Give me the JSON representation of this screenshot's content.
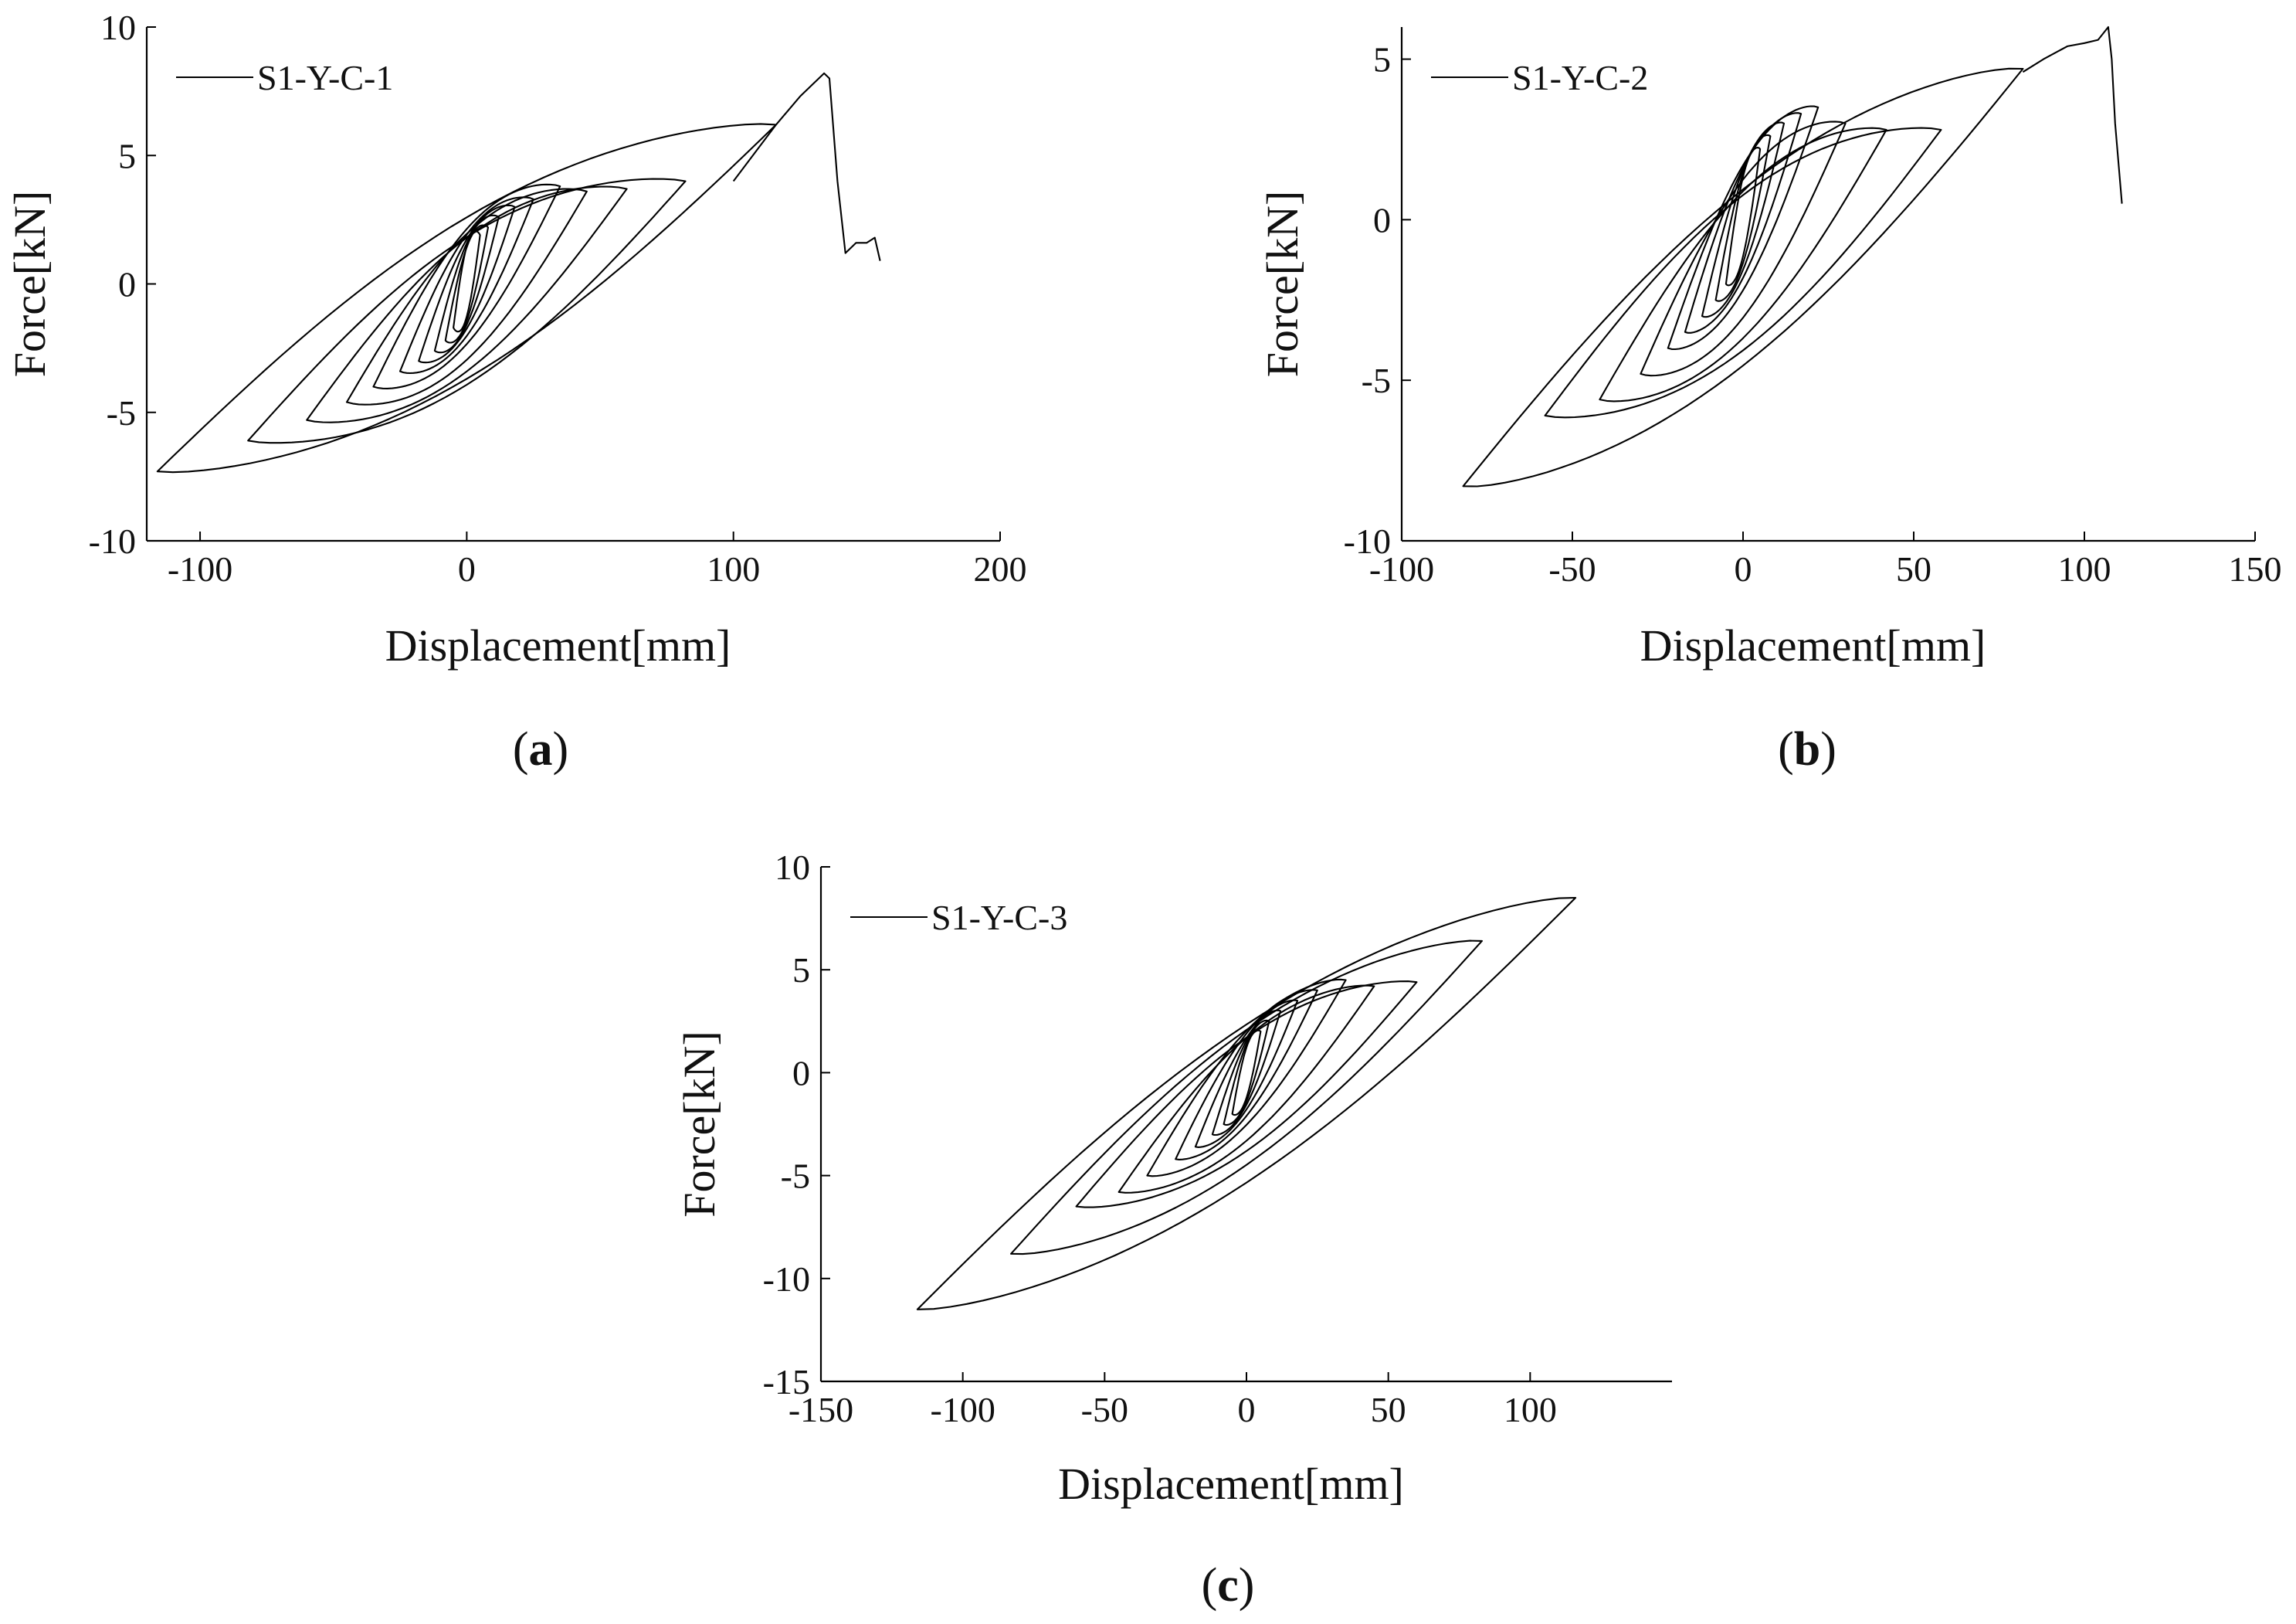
{
  "figure": {
    "panels_label_open": "(",
    "panels_label_close": ")"
  },
  "chart_data": [
    {
      "id": "a",
      "type": "line",
      "panel_label": "a",
      "title": "",
      "xlabel": "Displacement[mm]",
      "ylabel": "Force[kN]",
      "xlim": [
        -120,
        200
      ],
      "ylim": [
        -10,
        10
      ],
      "xticks": [
        -100,
        0,
        100,
        200
      ],
      "yticks": [
        -10,
        -5,
        0,
        5,
        10
      ],
      "grid": false,
      "legend_position": "top-left",
      "series": [
        {
          "name": "S1-Y-C-1",
          "loops": [
            {
              "amp": 5,
              "fp": 1.9,
              "fn": -1.7,
              "c": 1.2
            },
            {
              "amp": 8,
              "fp": 2.2,
              "fn": -2.2,
              "c": 1.2
            },
            {
              "amp": 12,
              "fp": 2.6,
              "fn": -2.6,
              "c": 1.3
            },
            {
              "amp": 18,
              "fp": 3.0,
              "fn": -3.0,
              "c": 1.4
            },
            {
              "amp": 25,
              "fp": 3.3,
              "fn": -3.4,
              "c": 1.6
            },
            {
              "amp": 35,
              "fp": 3.8,
              "fn": -4.0,
              "c": 1.8
            },
            {
              "amp": 45,
              "fp": 3.6,
              "fn": -4.6,
              "c": 2.0
            },
            {
              "amp": 60,
              "fp": 3.7,
              "fn": -5.3,
              "c": 2.1
            },
            {
              "amp": 82,
              "fp": 4.0,
              "fn": -6.1,
              "c": 2.3
            },
            {
              "amp": 116,
              "fp": 6.2,
              "fn": -7.3,
              "c": 2.3
            }
          ],
          "envelope_tail": [
            [
              100,
              4.0
            ],
            [
              116,
              6.2
            ],
            [
              125,
              7.3
            ],
            [
              134,
              8.2
            ],
            [
              136,
              8.0
            ],
            [
              139,
              4.0
            ],
            [
              142,
              1.2
            ],
            [
              146,
              1.6
            ],
            [
              150,
              1.6
            ],
            [
              153,
              1.8
            ],
            [
              155,
              0.9
            ]
          ]
        }
      ]
    },
    {
      "id": "b",
      "type": "line",
      "panel_label": "b",
      "title": "",
      "xlabel": "Displacement[mm]",
      "ylabel": "Force[kN]",
      "xlim": [
        -100,
        150
      ],
      "ylim": [
        -10,
        6
      ],
      "xticks": [
        -100,
        -50,
        0,
        50,
        100,
        150
      ],
      "yticks": [
        -10,
        -5,
        0,
        5
      ],
      "grid": false,
      "legend_position": "top-left",
      "series": [
        {
          "name": "S1-Y-C-2",
          "loops": [
            {
              "amp": 5,
              "fp": 2.2,
              "fn": -2.0,
              "c": 1.0
            },
            {
              "amp": 8,
              "fp": 2.6,
              "fn": -2.5,
              "c": 1.1
            },
            {
              "amp": 12,
              "fp": 3.0,
              "fn": -3.0,
              "c": 1.2
            },
            {
              "amp": 17,
              "fp": 3.3,
              "fn": -3.5,
              "c": 1.3
            },
            {
              "amp": 22,
              "fp": 3.5,
              "fn": -4.0,
              "c": 1.5
            },
            {
              "amp": 30,
              "fp": 3.0,
              "fn": -4.8,
              "c": 1.7
            },
            {
              "amp": 42,
              "fp": 2.8,
              "fn": -5.6,
              "c": 1.8
            },
            {
              "amp": 58,
              "fp": 2.8,
              "fn": -6.1,
              "c": 1.9
            },
            {
              "amp": 82,
              "fp": 4.7,
              "fn": -8.3,
              "c": 1.9
            }
          ],
          "envelope_tail": [
            [
              82,
              4.6
            ],
            [
              88,
              5.0
            ],
            [
              95,
              5.4
            ],
            [
              100,
              5.5
            ],
            [
              104,
              5.6
            ],
            [
              107,
              6.0
            ],
            [
              108,
              5.0
            ],
            [
              109,
              3.0
            ],
            [
              111,
              0.5
            ]
          ]
        }
      ]
    },
    {
      "id": "c",
      "type": "line",
      "panel_label": "c",
      "title": "",
      "xlabel": "Displacement[mm]",
      "ylabel": "Force[kN]",
      "xlim": [
        -150,
        150
      ],
      "ylim": [
        -15,
        10
      ],
      "xticks": [
        -150,
        -100,
        -50,
        0,
        50,
        100
      ],
      "yticks": [
        -15,
        -10,
        -5,
        0,
        5,
        10
      ],
      "grid": false,
      "legend_position": "top-left",
      "series": [
        {
          "name": "S1-Y-C-3",
          "loops": [
            {
              "amp": 5,
              "fp": 2.0,
              "fn": -2.0,
              "c": 1.0
            },
            {
              "amp": 8,
              "fp": 2.5,
              "fn": -2.5,
              "c": 1.1
            },
            {
              "amp": 12,
              "fp": 3.0,
              "fn": -3.0,
              "c": 1.2
            },
            {
              "amp": 18,
              "fp": 3.5,
              "fn": -3.6,
              "c": 1.3
            },
            {
              "amp": 25,
              "fp": 4.0,
              "fn": -4.2,
              "c": 1.5
            },
            {
              "amp": 35,
              "fp": 4.5,
              "fn": -5.0,
              "c": 1.7
            },
            {
              "amp": 45,
              "fp": 4.2,
              "fn": -5.8,
              "c": 1.9
            },
            {
              "amp": 60,
              "fp": 4.4,
              "fn": -6.5,
              "c": 2.1
            },
            {
              "amp": 83,
              "fp": 6.4,
              "fn": -8.8,
              "c": 2.3
            },
            {
              "amp": 116,
              "fp": 8.5,
              "fn": -11.5,
              "c": 2.5
            }
          ],
          "envelope_tail": []
        }
      ]
    }
  ]
}
